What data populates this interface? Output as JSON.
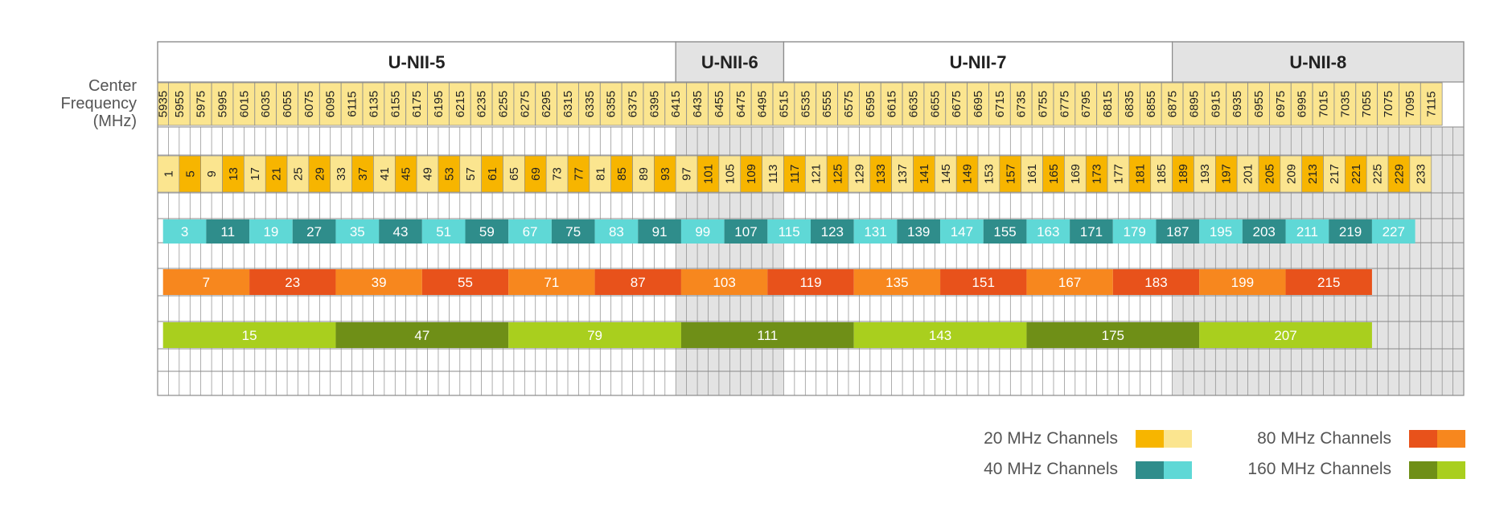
{
  "bands": [
    {
      "name": "U-NII-5",
      "from_channel": 1,
      "to_channel": 93,
      "shade": false
    },
    {
      "name": "U-NII-6",
      "from_channel": 97,
      "to_channel": 113,
      "shade": true
    },
    {
      "name": "U-NII-7",
      "from_channel": 117,
      "to_channel": 185,
      "shade": false
    },
    {
      "name": "U-NII-8",
      "from_channel": 189,
      "to_channel": 233,
      "shade": true
    }
  ],
  "axis_title": "Center\nFrequency\n(MHz)",
  "frequencies": [
    5935,
    5955,
    5975,
    5995,
    6015,
    6035,
    6055,
    6075,
    6095,
    6115,
    6135,
    6155,
    6175,
    6195,
    6215,
    6235,
    6255,
    6275,
    6295,
    6315,
    6335,
    6355,
    6375,
    6395,
    6415,
    6435,
    6455,
    6475,
    6495,
    6515,
    6535,
    6555,
    6575,
    6595,
    6615,
    6635,
    6655,
    6675,
    6695,
    6715,
    6735,
    6755,
    6775,
    6795,
    6815,
    6835,
    6855,
    6875,
    6895,
    6915,
    6935,
    6955,
    6975,
    6995,
    7015,
    7035,
    7055,
    7075,
    7095,
    7115
  ],
  "channels_20": [
    1,
    5,
    9,
    13,
    17,
    21,
    25,
    29,
    33,
    37,
    41,
    45,
    49,
    53,
    57,
    61,
    65,
    69,
    73,
    77,
    81,
    85,
    89,
    93,
    97,
    101,
    105,
    109,
    113,
    117,
    121,
    125,
    129,
    133,
    137,
    141,
    145,
    149,
    153,
    157,
    161,
    165,
    169,
    173,
    177,
    181,
    185,
    189,
    193,
    197,
    201,
    205,
    209,
    213,
    217,
    221,
    225,
    229,
    233
  ],
  "channels_40": [
    3,
    11,
    19,
    27,
    35,
    43,
    51,
    59,
    67,
    75,
    83,
    91,
    99,
    107,
    115,
    123,
    131,
    139,
    147,
    155,
    163,
    171,
    179,
    187,
    195,
    203,
    211,
    219,
    227
  ],
  "channels_80": [
    7,
    23,
    39,
    55,
    71,
    87,
    103,
    119,
    135,
    151,
    167,
    183,
    199,
    215
  ],
  "channels_160": [
    15,
    47,
    79,
    111,
    143,
    175,
    207
  ],
  "legend": [
    {
      "label": "20 MHz Channels",
      "colors": [
        "#f7b500",
        "#fbe58f"
      ]
    },
    {
      "label": "40 MHz Channels",
      "colors": [
        "#2f8d8b",
        "#5fd8d6"
      ]
    },
    {
      "label": "80 MHz Channels",
      "colors": [
        "#e8521b",
        "#f7871e"
      ]
    },
    {
      "label": "160 MHz Channels",
      "colors": [
        "#6f8f17",
        "#a9cf1e"
      ]
    }
  ],
  "colors": {
    "c20_dark": "#f7b500",
    "c20_light": "#fbe58f",
    "freq_bg": "#fbe58f",
    "c40_dark": "#2f8d8b",
    "c40_light": "#5fd8d6",
    "c80_dark": "#e8521b",
    "c80_light": "#f7871e",
    "c160_dark": "#6f8f17",
    "c160_light": "#a9cf1e",
    "grid": "#8a8a8a",
    "shade": "#e3e3e3",
    "text": "#222222"
  }
}
